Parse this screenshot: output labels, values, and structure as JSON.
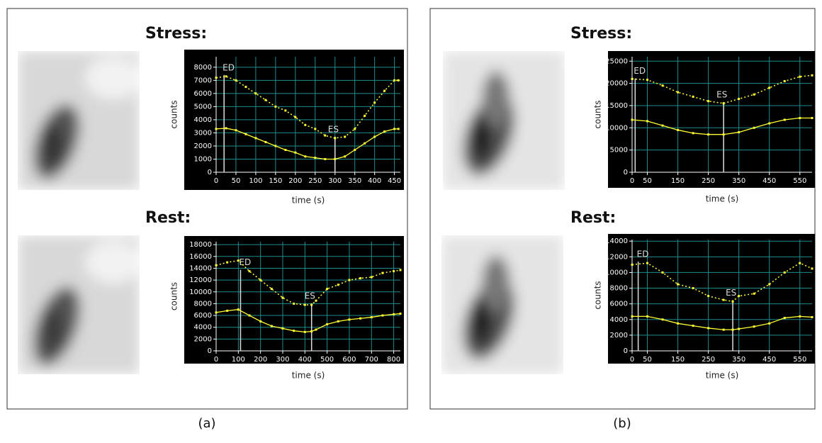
{
  "chart_data": [
    {
      "type": "line",
      "title": "Stress:",
      "xlabel": "time (s)",
      "ylabel": "counts",
      "x": [
        0,
        25,
        50,
        75,
        100,
        125,
        150,
        175,
        200,
        225,
        250,
        275,
        300,
        325,
        350,
        375,
        400,
        425,
        450,
        460
      ],
      "series": [
        {
          "color": "#ffff33",
          "style": "dotted",
          "values": [
            7200,
            7300,
            7000,
            6500,
            6000,
            5500,
            5000,
            4700,
            4200,
            3600,
            3300,
            2800,
            2600,
            2700,
            3300,
            4300,
            5300,
            6200,
            7000,
            7000
          ]
        },
        {
          "color": "#ffff33",
          "style": "solid",
          "values": [
            3300,
            3350,
            3200,
            2900,
            2600,
            2300,
            2000,
            1700,
            1500,
            1200,
            1100,
            1000,
            1000,
            1200,
            1700,
            2200,
            2700,
            3100,
            3300,
            3300
          ]
        }
      ],
      "xlim": [
        0,
        465
      ],
      "xticks": [
        0,
        50,
        100,
        150,
        200,
        250,
        300,
        350,
        400,
        450
      ],
      "ylim": [
        0,
        8800
      ],
      "yticks": [
        0,
        1000,
        2000,
        3000,
        4000,
        5000,
        6000,
        7000,
        8000
      ],
      "grid": true,
      "annotations": [
        {
          "text": "ED",
          "x": 20
        },
        {
          "text": "ES",
          "x": 300
        }
      ]
    },
    {
      "type": "line",
      "title": "Rest:",
      "xlabel": "time (s)",
      "ylabel": "counts",
      "x": [
        0,
        50,
        100,
        150,
        200,
        250,
        300,
        350,
        400,
        430,
        450,
        500,
        550,
        600,
        650,
        700,
        750,
        800,
        830
      ],
      "series": [
        {
          "color": "#ffff33",
          "style": "dotted",
          "values": [
            14500,
            15000,
            15300,
            13500,
            12000,
            10500,
            9000,
            8000,
            7800,
            7800,
            8500,
            10500,
            11200,
            12000,
            12300,
            12500,
            13200,
            13500,
            13700
          ]
        },
        {
          "color": "#ffff33",
          "style": "solid",
          "values": [
            6500,
            6800,
            7000,
            6000,
            5000,
            4200,
            3800,
            3400,
            3200,
            3300,
            3600,
            4500,
            5000,
            5300,
            5500,
            5700,
            6000,
            6200,
            6300
          ]
        }
      ],
      "xlim": [
        0,
        830
      ],
      "xticks": [
        0,
        100,
        200,
        300,
        400,
        500,
        600,
        700,
        800
      ],
      "ylim": [
        0,
        18500
      ],
      "yticks": [
        0,
        2000,
        4000,
        6000,
        8000,
        10000,
        12000,
        14000,
        16000,
        18000
      ],
      "grid": true,
      "annotations": [
        {
          "text": "ED",
          "x": 110
        },
        {
          "text": "ES",
          "x": 430
        }
      ]
    },
    {
      "type": "line",
      "title": "Stress:",
      "xlabel": "time (s)",
      "ylabel": "counts",
      "x": [
        0,
        50,
        100,
        150,
        200,
        250,
        300,
        350,
        400,
        450,
        500,
        550,
        590
      ],
      "series": [
        {
          "color": "#ffff33",
          "style": "dotted",
          "values": [
            21000,
            20800,
            19500,
            18000,
            17000,
            16000,
            15500,
            16500,
            17500,
            19000,
            20500,
            21500,
            21800
          ]
        },
        {
          "color": "#ffff33",
          "style": "solid",
          "values": [
            11800,
            11500,
            10500,
            9500,
            8800,
            8500,
            8500,
            9000,
            10000,
            11000,
            11800,
            12200,
            12200
          ]
        }
      ],
      "xlim": [
        0,
        590
      ],
      "xticks": [
        0,
        50,
        150,
        250,
        350,
        450,
        550
      ],
      "ylim": [
        0,
        26000
      ],
      "yticks": [
        0,
        5000,
        10000,
        15000,
        20000,
        25000
      ],
      "grid": true,
      "annotations": [
        {
          "text": "ED",
          "x": 10
        },
        {
          "text": "ES",
          "x": 300
        }
      ]
    },
    {
      "type": "line",
      "title": "Rest:",
      "xlabel": "time (s)",
      "ylabel": "counts",
      "x": [
        0,
        50,
        100,
        150,
        200,
        250,
        300,
        330,
        350,
        400,
        450,
        500,
        550,
        590
      ],
      "series": [
        {
          "color": "#ffff33",
          "style": "dotted",
          "values": [
            11000,
            11200,
            10000,
            8500,
            8000,
            7000,
            6500,
            6300,
            7000,
            7300,
            8500,
            10000,
            11200,
            10500
          ]
        },
        {
          "color": "#ffff33",
          "style": "solid",
          "values": [
            4400,
            4400,
            4000,
            3500,
            3200,
            2900,
            2700,
            2700,
            2800,
            3100,
            3500,
            4200,
            4400,
            4300
          ]
        }
      ],
      "xlim": [
        0,
        590
      ],
      "xticks": [
        0,
        50,
        150,
        250,
        350,
        450,
        550
      ],
      "ylim": [
        0,
        14200
      ],
      "yticks": [
        0,
        2000,
        4000,
        6000,
        8000,
        10000,
        12000,
        14000
      ],
      "grid": true,
      "annotations": [
        {
          "text": "ED",
          "x": 20
        },
        {
          "text": "ES",
          "x": 330
        }
      ]
    }
  ],
  "captions": [
    "(a)",
    "(b)"
  ]
}
